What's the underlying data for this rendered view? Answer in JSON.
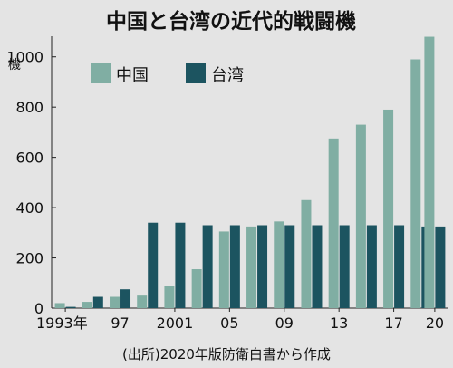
{
  "chart_data": {
    "type": "bar",
    "title": "中国と台湾の近代的戦闘機",
    "unit_label": "機",
    "source": "(出所)2020年版防衛白書から作成",
    "x": [
      1993,
      1995,
      1997,
      1999,
      2001,
      2003,
      2005,
      2007,
      2009,
      2011,
      2013,
      2015,
      2017,
      2019,
      2020
    ],
    "x_tick_labels": [
      "1993年",
      "97",
      "2001",
      "05",
      "09",
      "13",
      "17",
      "20"
    ],
    "x_tick_positions": [
      1993,
      1997,
      2001,
      2005,
      2009,
      2013,
      2017,
      2020
    ],
    "series": [
      {
        "name": "中国",
        "color": "#80aea3",
        "values": [
          20,
          25,
          45,
          50,
          90,
          155,
          305,
          325,
          345,
          430,
          675,
          730,
          790,
          990,
          1080
        ]
      },
      {
        "name": "台湾",
        "color": "#1c5460",
        "values": [
          5,
          45,
          75,
          340,
          340,
          330,
          330,
          330,
          330,
          330,
          330,
          330,
          330,
          325,
          325
        ]
      }
    ],
    "y_ticks": [
      0,
      200,
      400,
      600,
      800,
      1000
    ],
    "ylim": [
      0,
      1100
    ],
    "legend_position": "top-left",
    "grid": false
  }
}
